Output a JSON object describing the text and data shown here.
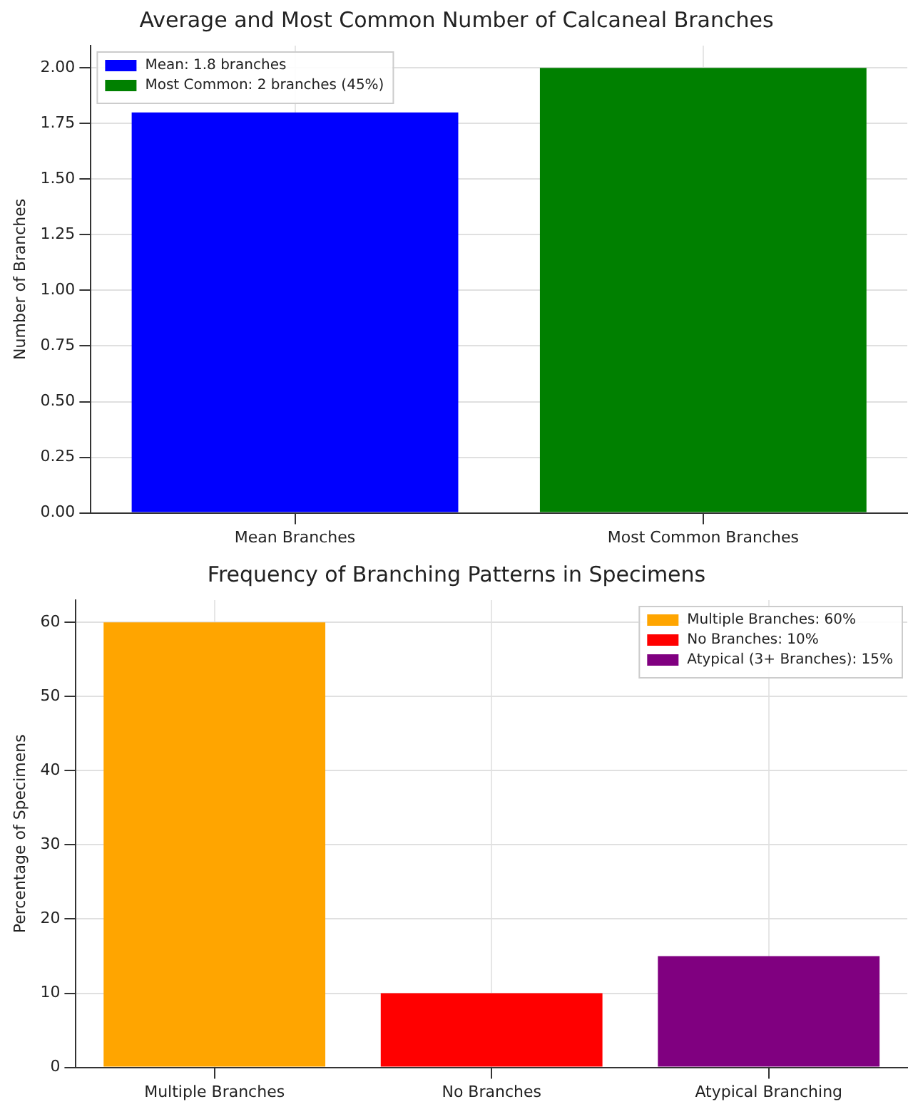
{
  "chart_data": [
    {
      "type": "bar",
      "title": "Average and Most Common Number of Calcaneal Branches",
      "ylabel": "Number of Branches",
      "categories": [
        "Mean Branches",
        "Most Common Branches"
      ],
      "series": [
        {
          "name": "Mean: 1.8 branches",
          "color": "#0000ff",
          "values": [
            1.8,
            null
          ]
        },
        {
          "name": "Most Common: 2 branches (45%)",
          "color": "#008000",
          "values": [
            null,
            2
          ]
        }
      ],
      "ylim": [
        0,
        2.1
      ],
      "yticks": [
        {
          "value": 0,
          "label": "0.00"
        },
        {
          "value": 0.25,
          "label": "0.25"
        },
        {
          "value": 0.5,
          "label": "0.50"
        },
        {
          "value": 0.75,
          "label": "0.75"
        },
        {
          "value": 1,
          "label": "1.00"
        },
        {
          "value": 1.25,
          "label": "1.25"
        },
        {
          "value": 1.5,
          "label": "1.50"
        },
        {
          "value": 1.75,
          "label": "1.75"
        },
        {
          "value": 2,
          "label": "2.00"
        }
      ],
      "grid": true,
      "legend": "top left"
    },
    {
      "type": "bar",
      "title": "Frequency of Branching Patterns in Specimens",
      "ylabel": "Percentage of Specimens",
      "categories": [
        "Multiple Branches",
        "No Branches",
        "Atypical Branching"
      ],
      "series": [
        {
          "name": "Multiple Branches: 60%",
          "color": "#ffa500",
          "values": [
            60,
            null,
            null
          ]
        },
        {
          "name": "No Branches: 10%",
          "color": "#ff0000",
          "values": [
            null,
            10,
            null
          ]
        },
        {
          "name": "Atypical (3+ Branches): 15%",
          "color": "#800080",
          "values": [
            null,
            null,
            15
          ]
        }
      ],
      "ylim": [
        0,
        63
      ],
      "yticks": [
        0,
        10,
        20,
        30,
        40,
        50,
        60
      ],
      "grid": true,
      "legend": "top right"
    }
  ]
}
